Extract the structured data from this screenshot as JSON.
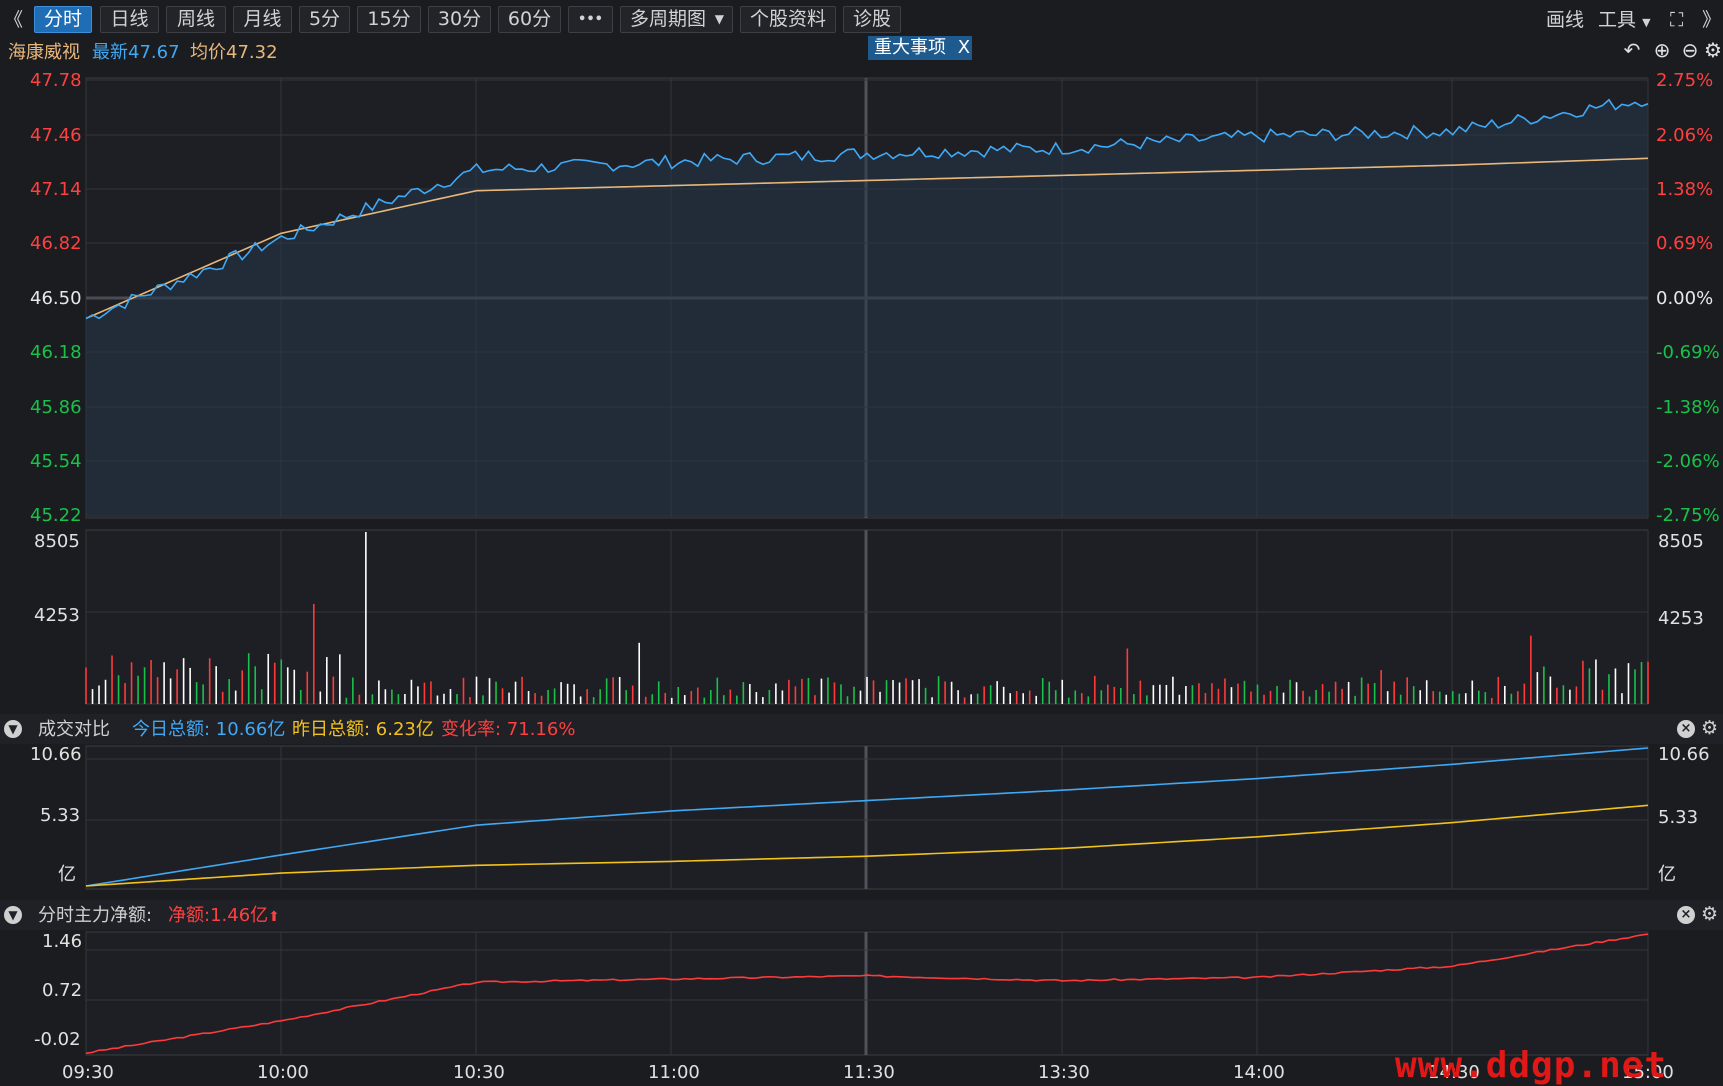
{
  "toolbar": {
    "prev": "《",
    "tabs": [
      "分时",
      "日线",
      "周线",
      "月线",
      "5分",
      "15分",
      "30分",
      "60分"
    ],
    "more": "•••",
    "multi_period": "多周期图",
    "stock_info": "个股资料",
    "diagnose": "诊股",
    "draw": "画线",
    "tools": "工具",
    "fullscreen": "⛶",
    "next": "》"
  },
  "info": {
    "name": "海康威视",
    "latest": "最新47.67",
    "avg": "均价47.32",
    "event": "重大事项",
    "event_close": "X"
  },
  "price_axis": {
    "left": [
      "47.78",
      "47.46",
      "47.14",
      "46.82",
      "46.50",
      "46.18",
      "45.86",
      "45.54",
      "45.22"
    ],
    "right": [
      "2.75%",
      "2.06%",
      "1.38%",
      "0.69%",
      "0.00%",
      "-0.69%",
      "-1.38%",
      "-2.06%",
      "-2.75%"
    ]
  },
  "volume_axis": {
    "left": [
      "8505",
      "4253"
    ],
    "right": [
      "8505",
      "4253"
    ]
  },
  "turnover_panel": {
    "title": "成交对比",
    "today": "今日总额: 10.66亿",
    "yesterday": "昨日总额: 6.23亿",
    "change": "变化率: 71.16%",
    "axis": [
      "10.66",
      "5.33",
      "亿"
    ]
  },
  "net_panel": {
    "title": "分时主力净额:",
    "net": "净额:1.46亿",
    "arrow": "⬆",
    "axis": [
      "1.46",
      "0.72",
      "-0.02"
    ]
  },
  "time_axis": [
    "09:30",
    "10:00",
    "10:30",
    "11:00",
    "11:30",
    "13:30",
    "14:00",
    "14:30",
    "15:00"
  ],
  "watermark": "www.ddgp.net",
  "colors": {
    "up": "#ff3a3a",
    "down": "#19c14a",
    "price_line": "#3fa9f5",
    "avg_line": "#e8b77a",
    "today_line": "#3fa9f5",
    "yesterday_line": "#f2c21a",
    "net_line": "#ff3a3a",
    "accent": "#1e6db5"
  },
  "chart_data": [
    {
      "type": "line",
      "title": "",
      "ylim": [
        45.22,
        47.78
      ],
      "x": [
        "09:30",
        "10:00",
        "10:30",
        "11:00",
        "11:30",
        "13:30",
        "14:00",
        "14:30",
        "15:00"
      ],
      "series": [
        {
          "name": "最新",
          "values": [
            46.38,
            46.85,
            47.25,
            47.3,
            47.35,
            47.38,
            47.45,
            47.48,
            47.67
          ]
        },
        {
          "name": "均价",
          "values": [
            46.38,
            46.88,
            47.13,
            47.16,
            47.19,
            47.22,
            47.25,
            47.28,
            47.32
          ]
        }
      ]
    },
    {
      "type": "line",
      "title": "成交对比",
      "ylim": [
        0,
        10.66
      ],
      "x": [
        "09:30",
        "10:00",
        "10:30",
        "11:00",
        "11:30",
        "13:30",
        "14:00",
        "14:30",
        "15:00"
      ],
      "series": [
        {
          "name": "今日总额",
          "values": [
            0,
            2.4,
            4.7,
            5.8,
            6.6,
            7.4,
            8.3,
            9.4,
            10.66
          ]
        },
        {
          "name": "昨日总额",
          "values": [
            0,
            1.0,
            1.6,
            1.9,
            2.3,
            2.9,
            3.8,
            4.9,
            6.23
          ]
        }
      ]
    },
    {
      "type": "line",
      "title": "分时主力净额",
      "ylim": [
        -0.02,
        1.46
      ],
      "x": [
        "09:30",
        "10:00",
        "10:30",
        "11:00",
        "11:30",
        "13:30",
        "14:00",
        "14:30",
        "15:00"
      ],
      "series": [
        {
          "name": "净额",
          "values": [
            -0.02,
            0.38,
            0.86,
            0.9,
            0.94,
            0.88,
            0.92,
            1.06,
            1.46
          ]
        }
      ]
    }
  ]
}
